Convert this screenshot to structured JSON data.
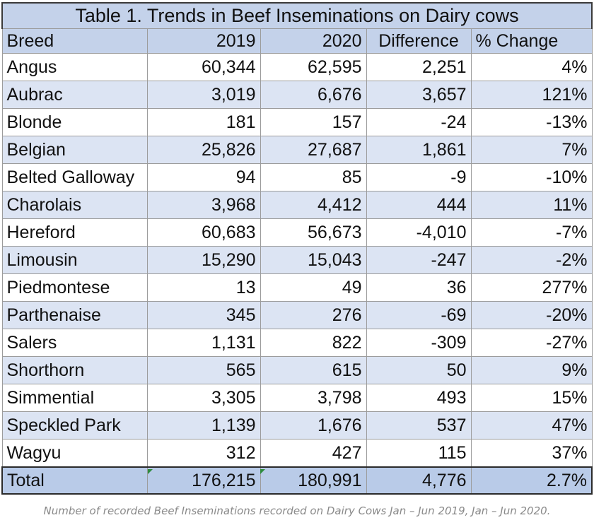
{
  "table": {
    "title": "Table 1. Trends in Beef Inseminations on Dairy cows",
    "headers": {
      "breed": "Breed",
      "y2019": "2019",
      "y2020": "2020",
      "difference": "Difference",
      "pct_change": "% Change"
    },
    "rows": [
      {
        "breed": "Angus",
        "y2019": "60,344",
        "y2020": "62,595",
        "difference": "2,251",
        "pct_change": "4%"
      },
      {
        "breed": "Aubrac",
        "y2019": "3,019",
        "y2020": "6,676",
        "difference": "3,657",
        "pct_change": "121%"
      },
      {
        "breed": "Blonde",
        "y2019": "181",
        "y2020": "157",
        "difference": "-24",
        "pct_change": "-13%"
      },
      {
        "breed": "Belgian",
        "y2019": "25,826",
        "y2020": "27,687",
        "difference": "1,861",
        "pct_change": "7%"
      },
      {
        "breed": "Belted Galloway",
        "y2019": "94",
        "y2020": "85",
        "difference": "-9",
        "pct_change": "-10%"
      },
      {
        "breed": "Charolais",
        "y2019": "3,968",
        "y2020": "4,412",
        "difference": "444",
        "pct_change": "11%"
      },
      {
        "breed": "Hereford",
        "y2019": "60,683",
        "y2020": "56,673",
        "difference": "-4,010",
        "pct_change": "-7%"
      },
      {
        "breed": "Limousin",
        "y2019": "15,290",
        "y2020": "15,043",
        "difference": "-247",
        "pct_change": "-2%"
      },
      {
        "breed": "Piedmontese",
        "y2019": "13",
        "y2020": "49",
        "difference": "36",
        "pct_change": "277%"
      },
      {
        "breed": "Parthenaise",
        "y2019": "345",
        "y2020": "276",
        "difference": "-69",
        "pct_change": "-20%"
      },
      {
        "breed": "Salers",
        "y2019": "1,131",
        "y2020": "822",
        "difference": "-309",
        "pct_change": "-27%"
      },
      {
        "breed": "Shorthorn",
        "y2019": "565",
        "y2020": "615",
        "difference": "50",
        "pct_change": "9%"
      },
      {
        "breed": "Simmential",
        "y2019": "3,305",
        "y2020": "3,798",
        "difference": "493",
        "pct_change": "15%"
      },
      {
        "breed": "Speckled Park",
        "y2019": "1,139",
        "y2020": "1,676",
        "difference": "537",
        "pct_change": "47%"
      },
      {
        "breed": "Wagyu",
        "y2019": "312",
        "y2020": "427",
        "difference": "115",
        "pct_change": "37%"
      }
    ],
    "total": {
      "breed": "Total",
      "y2019": "176,215",
      "y2020": "180,991",
      "difference": "4,776",
      "pct_change": "2.7%"
    }
  },
  "caption": "Number of recorded Beef Inseminations recorded on Dairy Cows Jan – Jun 2019, Jan – Jun 2020.",
  "colors": {
    "header_fill": "#c4d2ea",
    "band_fill": "#dce4f3",
    "total_fill": "#b9cbe8",
    "caption_text": "#8a8a8a"
  }
}
